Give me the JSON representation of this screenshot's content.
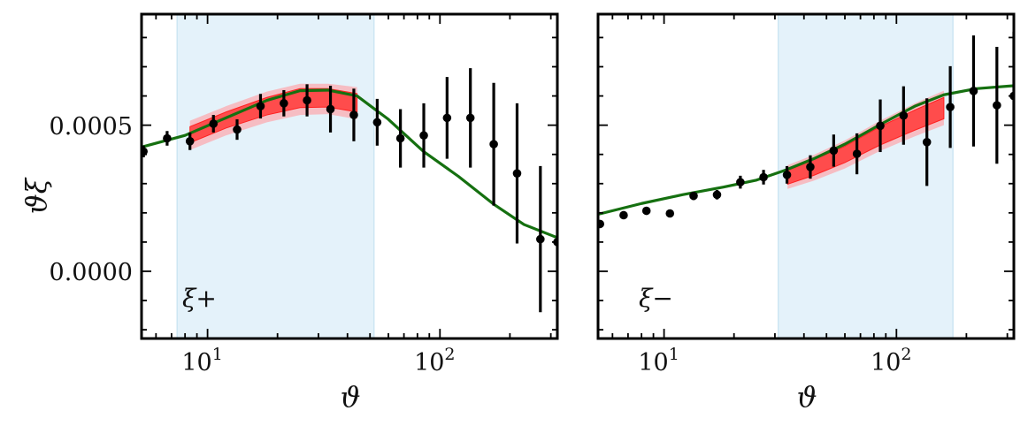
{
  "figure": {
    "ylabel": "ϑξ",
    "y_tick_labels": [
      "0.0000",
      "0.0005"
    ],
    "x_tick_labels": [
      {
        "base": "10",
        "exp": "1"
      },
      {
        "base": "10",
        "exp": "2"
      }
    ],
    "colors": {
      "model_line": "#157010",
      "data_points": "#000000",
      "band_inner": "#ff4c4c",
      "band_outer": "#f7b7bc",
      "band_edge": "#ff2020",
      "scale_cut_region": "#e4f2fa",
      "scale_cut_edge": "#cde6f3"
    }
  },
  "chart_data": [
    {
      "type": "line",
      "panel": "left",
      "title": "",
      "annotation": "ξ+",
      "xlabel": "ϑ",
      "ylabel": "ϑξ",
      "xscale": "log",
      "xlim": [
        5.2,
        320
      ],
      "ylim": [
        -0.00023,
        0.00088
      ],
      "yticks_major": [
        0.0,
        0.0005
      ],
      "grid": false,
      "legend": null,
      "shaded_x_range": [
        7.4,
        52
      ],
      "points": {
        "x": [
          5.3,
          6.7,
          8.4,
          10.6,
          13.4,
          16.9,
          21.3,
          26.8,
          33.8,
          42.6,
          53.7,
          67.6,
          85.2,
          107.3,
          135.2,
          170.4,
          214.7,
          270.5,
          320
        ],
        "y": [
          0.00041,
          0.000455,
          0.000445,
          0.000505,
          0.000485,
          0.000565,
          0.000575,
          0.000585,
          0.000555,
          0.000535,
          0.00051,
          0.000455,
          0.000465,
          0.000525,
          0.000525,
          0.000435,
          0.000335,
          0.00011,
          0.0001
        ],
        "yerr": [
          2e-05,
          2.5e-05,
          3e-05,
          3e-05,
          3.5e-05,
          4.2e-05,
          4.5e-05,
          5.5e-05,
          8e-05,
          9e-05,
          8e-05,
          0.0001,
          0.00011,
          0.00014,
          0.00017,
          0.00021,
          0.00024,
          0.00025,
          0.0003
        ]
      },
      "model_curve": {
        "x": [
          5.2,
          8,
          12,
          18,
          25,
          33,
          44,
          60,
          85,
          120,
          170,
          230,
          320
        ],
        "y": [
          0.000425,
          0.000465,
          0.000525,
          0.000585,
          0.000618,
          0.00062,
          0.0006,
          0.00052,
          0.00041,
          0.000325,
          0.00023,
          0.00016,
          0.000115
        ]
      },
      "posterior_band": {
        "x": [
          8.4,
          12,
          18,
          25,
          33,
          44
        ],
        "median": [
          0.00047,
          0.00052,
          0.00057,
          0.0006,
          0.000602,
          0.000585
        ],
        "inner_lo": [
          0.00044,
          0.00049,
          0.000535,
          0.00056,
          0.000562,
          0.000545
        ],
        "inner_hi": [
          0.000495,
          0.000545,
          0.000595,
          0.000625,
          0.000625,
          0.000608
        ],
        "outer_lo": [
          0.000415,
          0.000465,
          0.00051,
          0.000535,
          0.000538,
          0.00052
        ],
        "outer_hi": [
          0.000515,
          0.000565,
          0.000615,
          0.000642,
          0.000642,
          0.00063
        ]
      }
    },
    {
      "type": "line",
      "panel": "right",
      "title": "",
      "annotation": "ξ−",
      "xlabel": "ϑ",
      "ylabel": "",
      "xscale": "log",
      "xlim": [
        5.2,
        320
      ],
      "ylim": [
        -0.00023,
        0.00088
      ],
      "yticks_major": [
        0.0,
        0.0005
      ],
      "grid": false,
      "legend": null,
      "shaded_x_range": [
        31,
        175
      ],
      "points": {
        "x": [
          5.3,
          6.7,
          8.4,
          10.6,
          13.4,
          16.9,
          21.3,
          26.8,
          33.8,
          42.6,
          53.7,
          67.6,
          85.2,
          107.3,
          135.2,
          170.4,
          214.7,
          270.5,
          320
        ],
        "y": [
          0.000162,
          0.000192,
          0.000207,
          0.000198,
          0.000258,
          0.000262,
          0.000305,
          0.000322,
          0.00033,
          0.000357,
          0.000413,
          0.000402,
          0.000498,
          0.000533,
          0.000442,
          0.000562,
          0.000617,
          0.000568,
          0.0006
        ],
        "yerr": [
          1e-05,
          1e-05,
          1.2e-05,
          1.2e-05,
          1.4e-05,
          1.6e-05,
          2.2e-05,
          2.5e-05,
          3e-05,
          4e-05,
          5.5e-05,
          7e-05,
          9e-05,
          0.0001,
          0.00015,
          0.00014,
          0.00019,
          0.0002,
          0.00022
        ]
      },
      "model_curve": {
        "x": [
          5.2,
          8,
          12,
          18,
          25,
          33,
          44,
          60,
          85,
          120,
          160,
          220,
          320
        ],
        "y": [
          0.000195,
          0.000232,
          0.000262,
          0.000288,
          0.000312,
          0.000345,
          0.000385,
          0.000435,
          0.000502,
          0.000565,
          0.000604,
          0.000625,
          0.000635
        ]
      },
      "posterior_band": {
        "x": [
          34,
          44,
          60,
          85,
          120,
          160
        ],
        "median": [
          0.000318,
          0.000352,
          0.000398,
          0.00046,
          0.000515,
          0.000558
        ],
        "inner_lo": [
          0.000298,
          0.000328,
          0.000372,
          0.000432,
          0.000483,
          0.000522
        ],
        "inner_hi": [
          0.000345,
          0.000382,
          0.000428,
          0.000495,
          0.000552,
          0.000595
        ],
        "outer_lo": [
          0.000282,
          0.00031,
          0.000352,
          0.000412,
          0.000462,
          0.0005
        ],
        "outer_hi": [
          0.000363,
          0.000398,
          0.000448,
          0.000515,
          0.000575,
          0.000618
        ]
      }
    }
  ]
}
